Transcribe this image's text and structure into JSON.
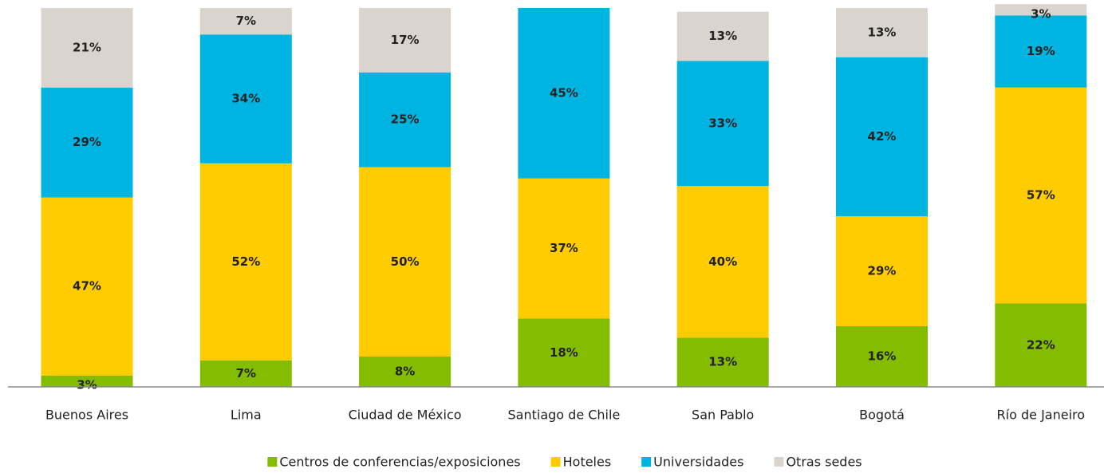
{
  "chart_data": {
    "type": "stacked_bar",
    "categories": [
      "Buenos Aires",
      "Lima",
      "Ciudad de México",
      "Santiago de Chile",
      "San Pablo",
      "Bogotá",
      "Río de Janeiro"
    ],
    "ylim": [
      0,
      100
    ],
    "series": [
      {
        "name": "Centros de conferencias/exposiciones",
        "color": "#84bc00",
        "values": [
          3,
          7,
          8,
          18,
          13,
          16,
          22
        ],
        "value_labels": [
          "3%",
          "7%",
          "8%",
          "18%",
          "13%",
          "16%",
          "22%"
        ]
      },
      {
        "name": "Hoteles",
        "color": "#ffcc00",
        "values": [
          47,
          52,
          50,
          37,
          40,
          29,
          57
        ],
        "value_labels": [
          "47%",
          "52%",
          "50%",
          "37%",
          "40%",
          "29%",
          "57%"
        ]
      },
      {
        "name": "Universidades",
        "color": "#00b4e1",
        "values": [
          29,
          34,
          25,
          45,
          33,
          42,
          19
        ],
        "value_labels": [
          "29%",
          "34%",
          "25%",
          "45%",
          "33%",
          "42%",
          "19%"
        ]
      },
      {
        "name": "Otras sedes",
        "color": "#d9d4ce",
        "values": [
          21,
          7,
          17,
          null,
          13,
          13,
          3
        ],
        "value_labels": [
          "21%",
          "7%",
          "17%",
          null,
          "13%",
          "13%",
          "3%"
        ]
      }
    ]
  }
}
